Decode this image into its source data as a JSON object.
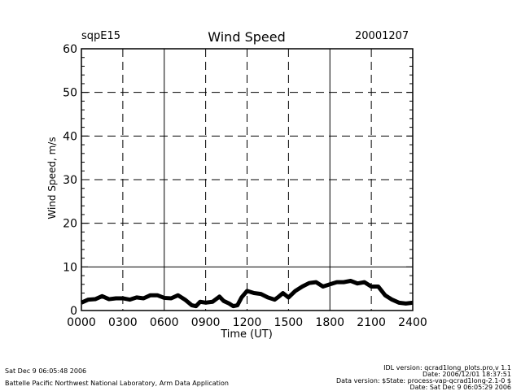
{
  "chart_data": {
    "type": "line",
    "title": "Wind Speed",
    "site": "sqpE15",
    "date": "20001207",
    "xlabel": "Time (UT)",
    "ylabel": "Wind Speed, m/s",
    "xlim": [
      0,
      24
    ],
    "ylim": [
      0,
      60
    ],
    "xticks": [
      "0000",
      "0300",
      "0600",
      "0900",
      "1200",
      "1500",
      "1800",
      "2100",
      "2400"
    ],
    "yticks": [
      "0",
      "10",
      "20",
      "30",
      "40",
      "50",
      "60"
    ],
    "grid": true,
    "series": [
      {
        "name": "Wind Speed",
        "x": [
          0,
          0.5,
          1,
          1.5,
          2,
          2.5,
          3,
          3.5,
          4,
          4.5,
          5,
          5.5,
          6,
          6.5,
          7,
          7.5,
          8,
          8.3,
          8.6,
          9,
          9.5,
          10,
          10.3,
          10.7,
          11,
          11.3,
          11.6,
          12,
          12.5,
          13,
          13.5,
          14,
          14.3,
          14.6,
          15,
          15.5,
          16,
          16.5,
          17,
          17.5,
          18,
          18.5,
          19,
          19.5,
          20,
          20.5,
          21,
          21.5,
          22,
          22.5,
          23,
          23.5,
          24
        ],
        "y": [
          1.8,
          2.5,
          2.6,
          3.3,
          2.6,
          2.8,
          2.8,
          2.5,
          3.0,
          2.8,
          3.5,
          3.5,
          2.9,
          2.8,
          3.5,
          2.5,
          1.2,
          1.0,
          2.0,
          1.8,
          2.0,
          3.2,
          2.2,
          1.6,
          1.0,
          1.2,
          3.0,
          4.5,
          4.0,
          3.8,
          3.0,
          2.5,
          3.2,
          4.0,
          3.0,
          4.5,
          5.5,
          6.3,
          6.5,
          5.5,
          6.0,
          6.5,
          6.5,
          6.8,
          6.2,
          6.5,
          5.5,
          5.5,
          3.5,
          2.5,
          1.8,
          1.6,
          1.8
        ]
      }
    ]
  },
  "footer": {
    "left_date": "Sat Dec  9 06:05:48 2006",
    "org": "Battelle Pacific Northwest National Laboratory, Arm Data Application",
    "idl_version": "IDL version: qcrad1long_plots.pro,v 1.1",
    "idl_date": "Date: 2006/12/01 18:37:51",
    "data_version": "Data version: $State: process-vap-qcrad1long-2.1-0 $",
    "data_date": "Date: Sat Dec  9 06:05:29 2006"
  }
}
